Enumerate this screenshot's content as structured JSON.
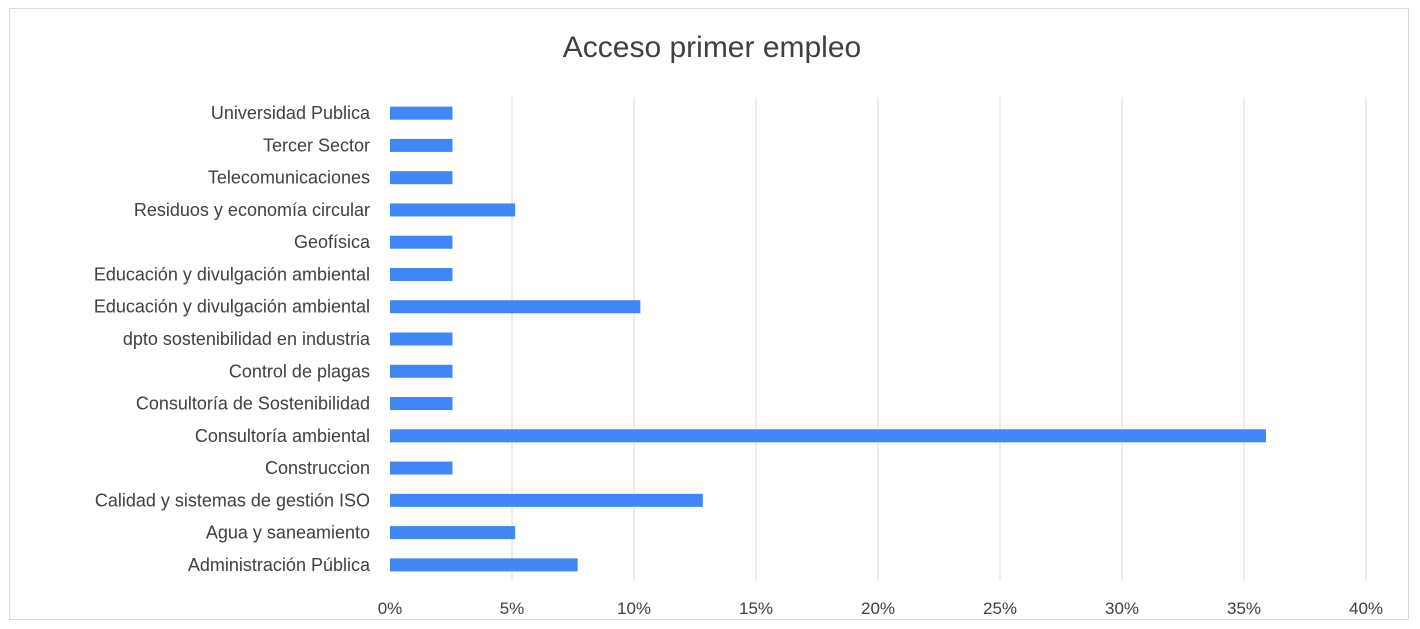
{
  "chart_data": {
    "type": "bar",
    "orientation": "horizontal",
    "title": "Acceso primer empleo",
    "categories": [
      "Universidad Publica",
      "Tercer Sector",
      "Telecomunicaciones",
      "Residuos y economía circular",
      "Geofísica",
      "Educación y divulgación ambiental",
      "Educación y divulgación ambiental",
      "dpto sostenibilidad en industria",
      "Control de plagas",
      "Consultoría de Sostenibilidad",
      "Consultoría ambiental",
      "Construccion",
      "Calidad y sistemas de gestión ISO",
      "Agua y saneamiento",
      "Administración Pública"
    ],
    "values": [
      2.56,
      2.56,
      2.56,
      5.13,
      2.56,
      2.56,
      10.26,
      2.56,
      2.56,
      2.56,
      35.9,
      2.56,
      12.82,
      5.13,
      7.69
    ],
    "xlim": [
      0,
      40
    ],
    "ticks": [
      "0%",
      "5%",
      "10%",
      "15%",
      "20%",
      "25%",
      "30%",
      "35%",
      "40%"
    ],
    "tick_values": [
      0,
      5,
      10,
      15,
      20,
      25,
      30,
      35,
      40
    ],
    "xlabel": "",
    "ylabel": "",
    "grid": "vertical",
    "legend": "none",
    "bar_color": "#4285f4"
  }
}
